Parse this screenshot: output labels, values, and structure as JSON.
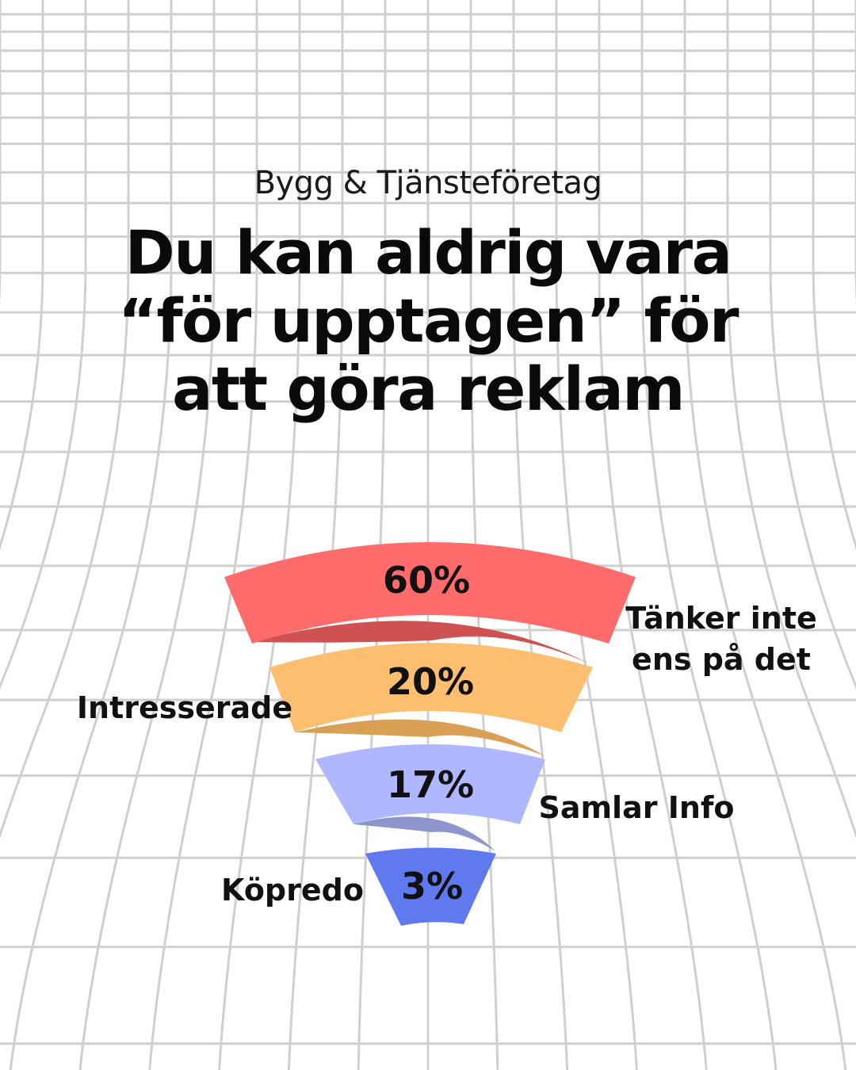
{
  "header": {
    "subtitle": "Bygg & Tjänsteföretag",
    "title_lines": [
      "Du kan aldrig vara",
      "“för upptagen” för",
      "att göra reklam"
    ]
  },
  "colors": {
    "grid": "#cfcfcf",
    "text": "#111111"
  },
  "chart_data": {
    "type": "funnel",
    "unit": "%",
    "stages": [
      {
        "label_lines": [
          "Tänker inte",
          "ens på det"
        ],
        "value": 60,
        "display": "60%",
        "color": "#ff6b6b",
        "fold_color": "#cf5252",
        "label_side": "right"
      },
      {
        "label_lines": [
          "Intresserade"
        ],
        "value": 20,
        "display": "20%",
        "color": "#fdbf6f",
        "fold_color": "#d9a055",
        "label_side": "left"
      },
      {
        "label_lines": [
          "Samlar Info"
        ],
        "value": 17,
        "display": "17%",
        "color": "#aeb7ff",
        "fold_color": "#8d95cc",
        "label_side": "right"
      },
      {
        "label_lines": [
          "Köpredo"
        ],
        "value": 3,
        "display": "3%",
        "color": "#5f79ee",
        "fold_color": null,
        "label_side": "left"
      }
    ]
  }
}
